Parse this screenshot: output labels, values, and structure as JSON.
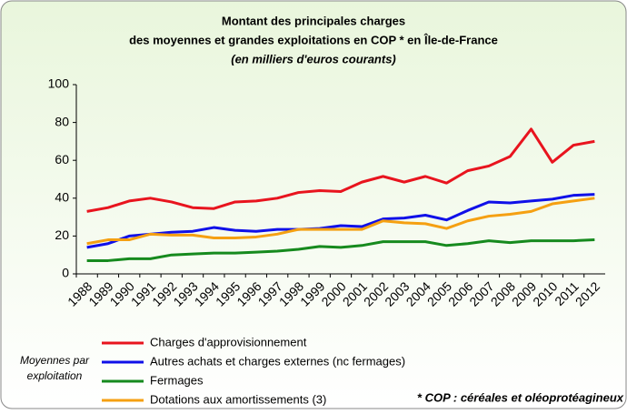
{
  "chart_data": {
    "type": "line",
    "title": [
      "Montant des principales charges",
      "des moyennes et grandes exploitations en COP * en Île-de-France"
    ],
    "subtitle": "(en milliers d'euros courants)",
    "legend_title": [
      "Moyennes par",
      "exploitation"
    ],
    "note": "* COP : céréales et oléoprotéagineux",
    "categories": [
      "1988",
      "1989",
      "1990",
      "1991",
      "1992",
      "1993",
      "1994",
      "1995",
      "1996",
      "1997",
      "1998",
      "1999",
      "2000",
      "2001",
      "2002",
      "2003",
      "2004",
      "2005",
      "2006",
      "2007",
      "2008",
      "2009",
      "2010",
      "2011",
      "2012"
    ],
    "series": [
      {
        "name": "Charges d'approvisionnement",
        "color": "#e8141e",
        "values": [
          33,
          35,
          38.5,
          40,
          38,
          35,
          34.5,
          38,
          38.5,
          40,
          43,
          44,
          43.5,
          48.5,
          51.5,
          48.5,
          51.5,
          48,
          54.5,
          57,
          62,
          76.5,
          59,
          68,
          70
        ]
      },
      {
        "name": "Autres achats et charges externes (nc fermages)",
        "color": "#1010e8",
        "values": [
          14,
          16,
          20,
          21,
          22,
          22.5,
          24.5,
          23,
          22.5,
          23.5,
          23.5,
          24,
          25.5,
          25,
          29,
          29.5,
          31,
          28.5,
          33.5,
          38,
          37.5,
          38.5,
          39.5,
          41.5,
          42
        ]
      },
      {
        "name": "Fermages",
        "color": "#168a1e",
        "values": [
          7,
          7,
          8,
          8,
          10,
          10.5,
          11,
          11,
          11.5,
          12,
          13,
          14.5,
          14,
          15,
          17,
          17,
          17,
          15,
          16,
          17.5,
          16.5,
          17.5,
          17.5,
          17.5,
          18
        ]
      },
      {
        "name": "Dotations aux amortissements (3)",
        "color": "#f5a012",
        "values": [
          16,
          18,
          18,
          21,
          20.5,
          20.5,
          19,
          19,
          19.5,
          21,
          23.5,
          23.5,
          23.5,
          23.5,
          28,
          27,
          26.5,
          24,
          28,
          30.5,
          31.5,
          33,
          37,
          38.5,
          40
        ]
      }
    ],
    "ylim": [
      0,
      100
    ],
    "yticks": [
      0,
      20,
      40,
      60,
      80,
      100
    ],
    "grid": false
  }
}
